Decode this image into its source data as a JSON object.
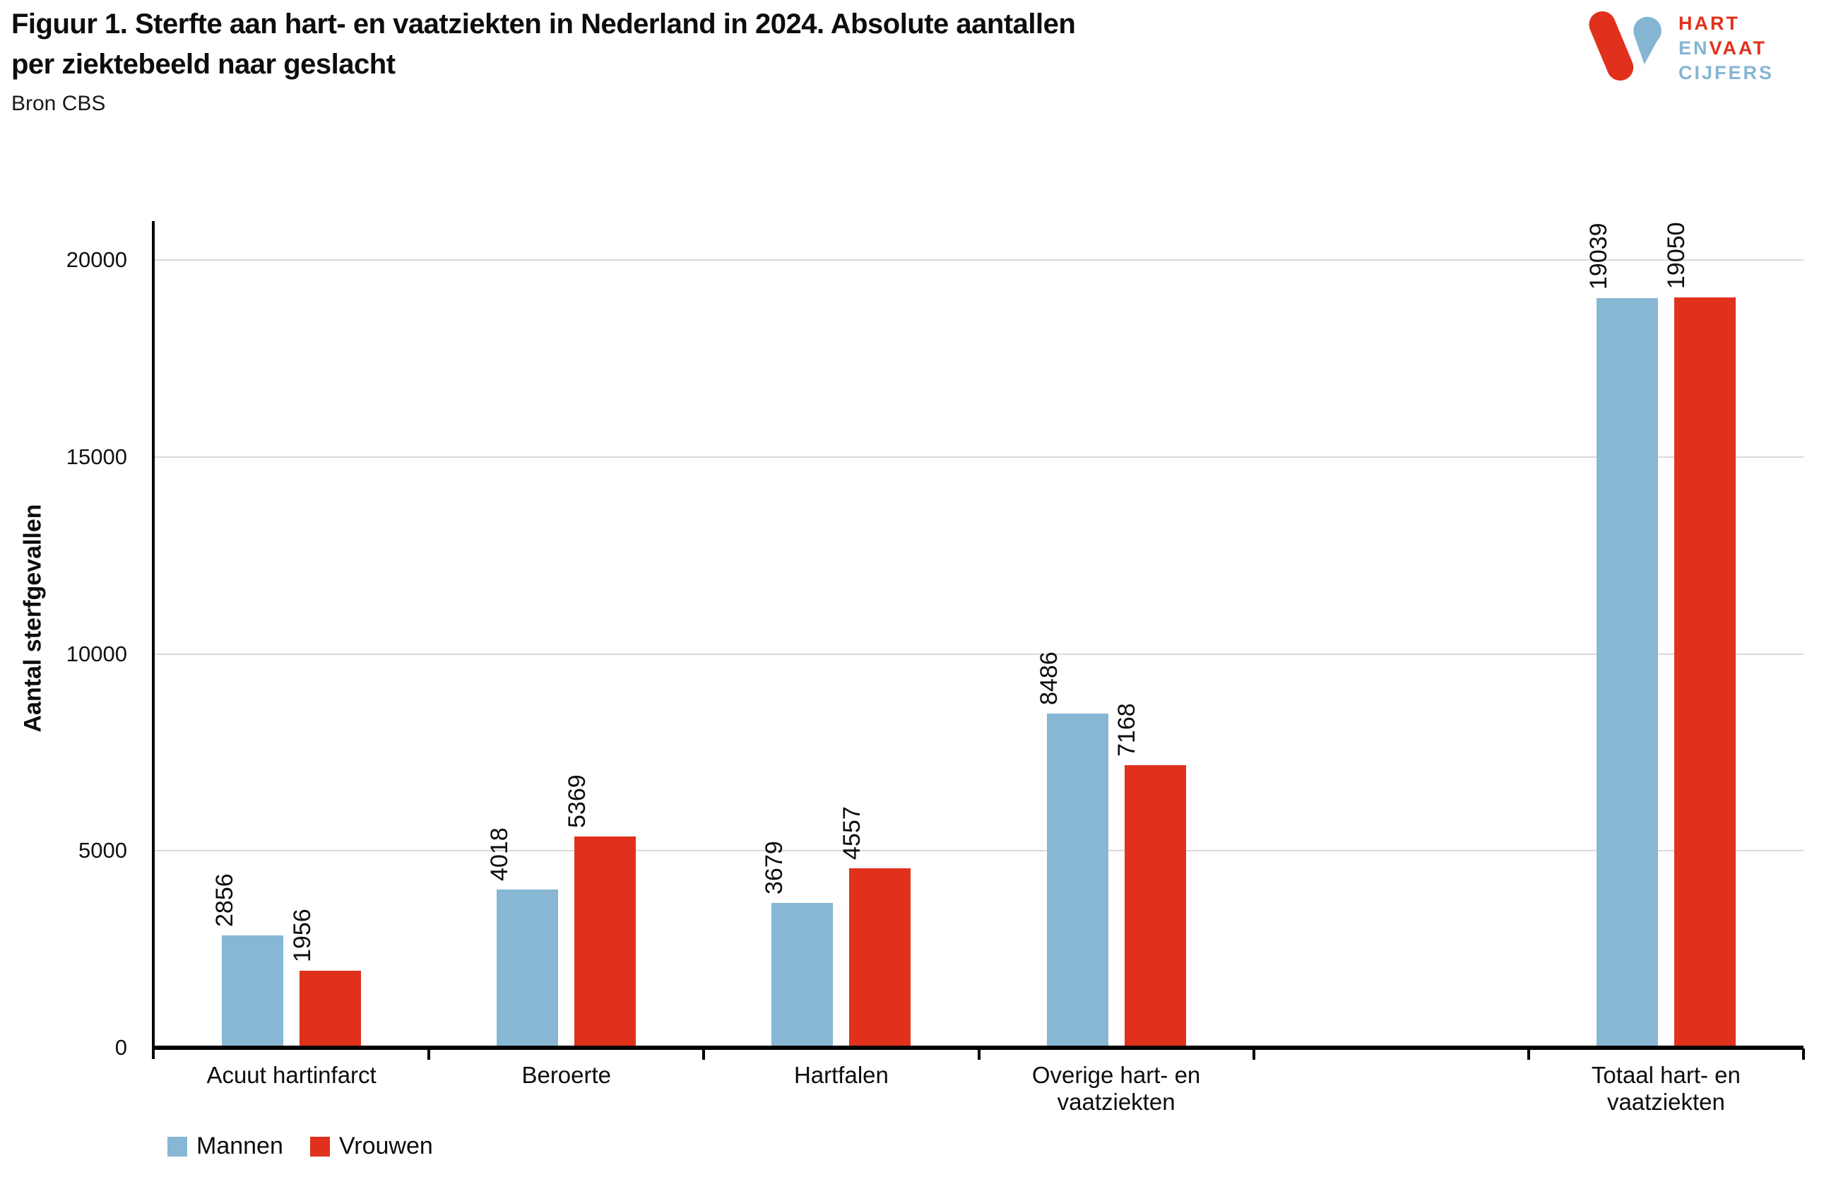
{
  "header": {
    "title": "Figuur 1. Sterfte aan hart- en vaatziekten in Nederland in 2024. Absolute aantallen per ziektebeeld naar geslacht",
    "source": "Bron CBS"
  },
  "logo": {
    "word1": "HART",
    "word2a": "EN",
    "word2b": "VAAT",
    "word3": "CIJFERS",
    "red": "#e1311c",
    "blue": "#85b5d3"
  },
  "colors": {
    "mannen": "#87b7d4",
    "vrouwen": "#e1311c",
    "gridline": "#d9d9d9",
    "axis": "#000000"
  },
  "chart_data": {
    "type": "bar",
    "title": "Figuur 1. Sterfte aan hart- en vaatziekten in Nederland in 2024. Absolute aantallen per ziektebeeld naar geslacht",
    "xlabel": "",
    "ylabel": "Aantal sterfgevallen",
    "ylim": [
      0,
      20000
    ],
    "yticks": [
      0,
      5000,
      10000,
      15000,
      20000
    ],
    "grid": "horizontal",
    "legend_position": "bottom-left",
    "bar_value_labels": "rotated-90",
    "categories": [
      "Acuut hartinfarct",
      "Beroerte",
      "Hartfalen",
      "Overige hart- en vaatziekten",
      "",
      "Totaal hart- en vaatziekten"
    ],
    "series": [
      {
        "name": "Mannen",
        "color": "#87b7d4",
        "values": [
          2856,
          4018,
          3679,
          8486,
          null,
          19039
        ]
      },
      {
        "name": "Vrouwen",
        "color": "#e1311c",
        "values": [
          1956,
          5369,
          4557,
          7168,
          null,
          19050
        ]
      }
    ]
  }
}
